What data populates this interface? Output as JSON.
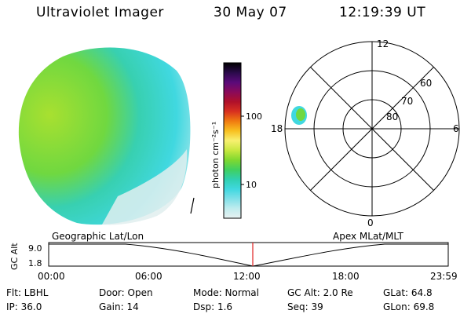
{
  "header": {
    "title": "Ultraviolet Imager",
    "date": "30 May 07",
    "time": "12:19:39 UT"
  },
  "colorbar": {
    "label": "photon cm⁻²s⁻¹",
    "ticks": [
      "100",
      "10"
    ],
    "colors": [
      "#000000",
      "#2a0a4a",
      "#5a0a7a",
      "#8a0a5a",
      "#b0102a",
      "#d83020",
      "#f07a10",
      "#f8c020",
      "#f8f070",
      "#c8e840",
      "#80d830",
      "#40d060",
      "#30d0b0",
      "#40d8e0",
      "#80e0e8",
      "#c0ecee",
      "#e8f2f2"
    ]
  },
  "polar": {
    "mlt_labels": [
      "12",
      "18",
      "6",
      "0"
    ],
    "lat_labels": [
      "60",
      "70",
      "80"
    ]
  },
  "timeline": {
    "left_label": "Geographic Lat/Lon",
    "right_label": "Apex  MLat/MLT",
    "ylabel": "GC Alt",
    "yticks": [
      "9.0",
      "1.8"
    ],
    "xticks": [
      "00:00",
      "06:00",
      "12:00",
      "18:00",
      "23:59"
    ],
    "marker_color": "#e02020"
  },
  "info": {
    "flt": "Flt: LBHL",
    "ip": "IP: 36.0",
    "door": "Door: Open",
    "gain": "Gain: 14",
    "mode": "Mode: Normal",
    "dsp": "Dsp:     1.6",
    "gcalt": "GC Alt: 2.0 Re",
    "seq": "Seq: 39",
    "glat": "GLat:   64.8",
    "glon": "GLon:   69.8"
  }
}
